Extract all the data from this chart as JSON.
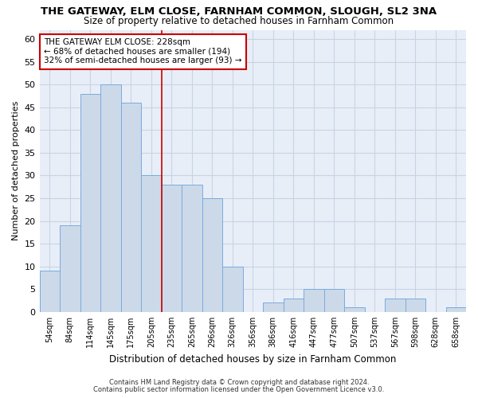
{
  "title": "THE GATEWAY, ELM CLOSE, FARNHAM COMMON, SLOUGH, SL2 3NA",
  "subtitle": "Size of property relative to detached houses in Farnham Common",
  "xlabel": "Distribution of detached houses by size in Farnham Common",
  "ylabel": "Number of detached properties",
  "footnote1": "Contains HM Land Registry data © Crown copyright and database right 2024.",
  "footnote2": "Contains public sector information licensed under the Open Government Licence v3.0.",
  "categories": [
    "54sqm",
    "84sqm",
    "114sqm",
    "145sqm",
    "175sqm",
    "205sqm",
    "235sqm",
    "265sqm",
    "296sqm",
    "326sqm",
    "356sqm",
    "386sqm",
    "416sqm",
    "447sqm",
    "477sqm",
    "507sqm",
    "537sqm",
    "567sqm",
    "598sqm",
    "628sqm",
    "658sqm"
  ],
  "values": [
    9,
    19,
    48,
    50,
    46,
    30,
    28,
    28,
    25,
    10,
    0,
    2,
    3,
    5,
    5,
    1,
    0,
    3,
    3,
    0,
    1
  ],
  "bar_color": "#ccd9e8",
  "bar_edge_color": "#7aabe0",
  "vline_color": "#cc0000",
  "annotation_title": "THE GATEWAY ELM CLOSE: 228sqm",
  "annotation_line1": "← 68% of detached houses are smaller (194)",
  "annotation_line2": "32% of semi-detached houses are larger (93) →",
  "annotation_box_color": "#ffffff",
  "annotation_box_edge": "#cc0000",
  "ylim": [
    0,
    62
  ],
  "yticks": [
    0,
    5,
    10,
    15,
    20,
    25,
    30,
    35,
    40,
    45,
    50,
    55,
    60
  ],
  "grid_color": "#c8d4e4",
  "background_color": "#e8eef8",
  "fig_background": "#ffffff"
}
